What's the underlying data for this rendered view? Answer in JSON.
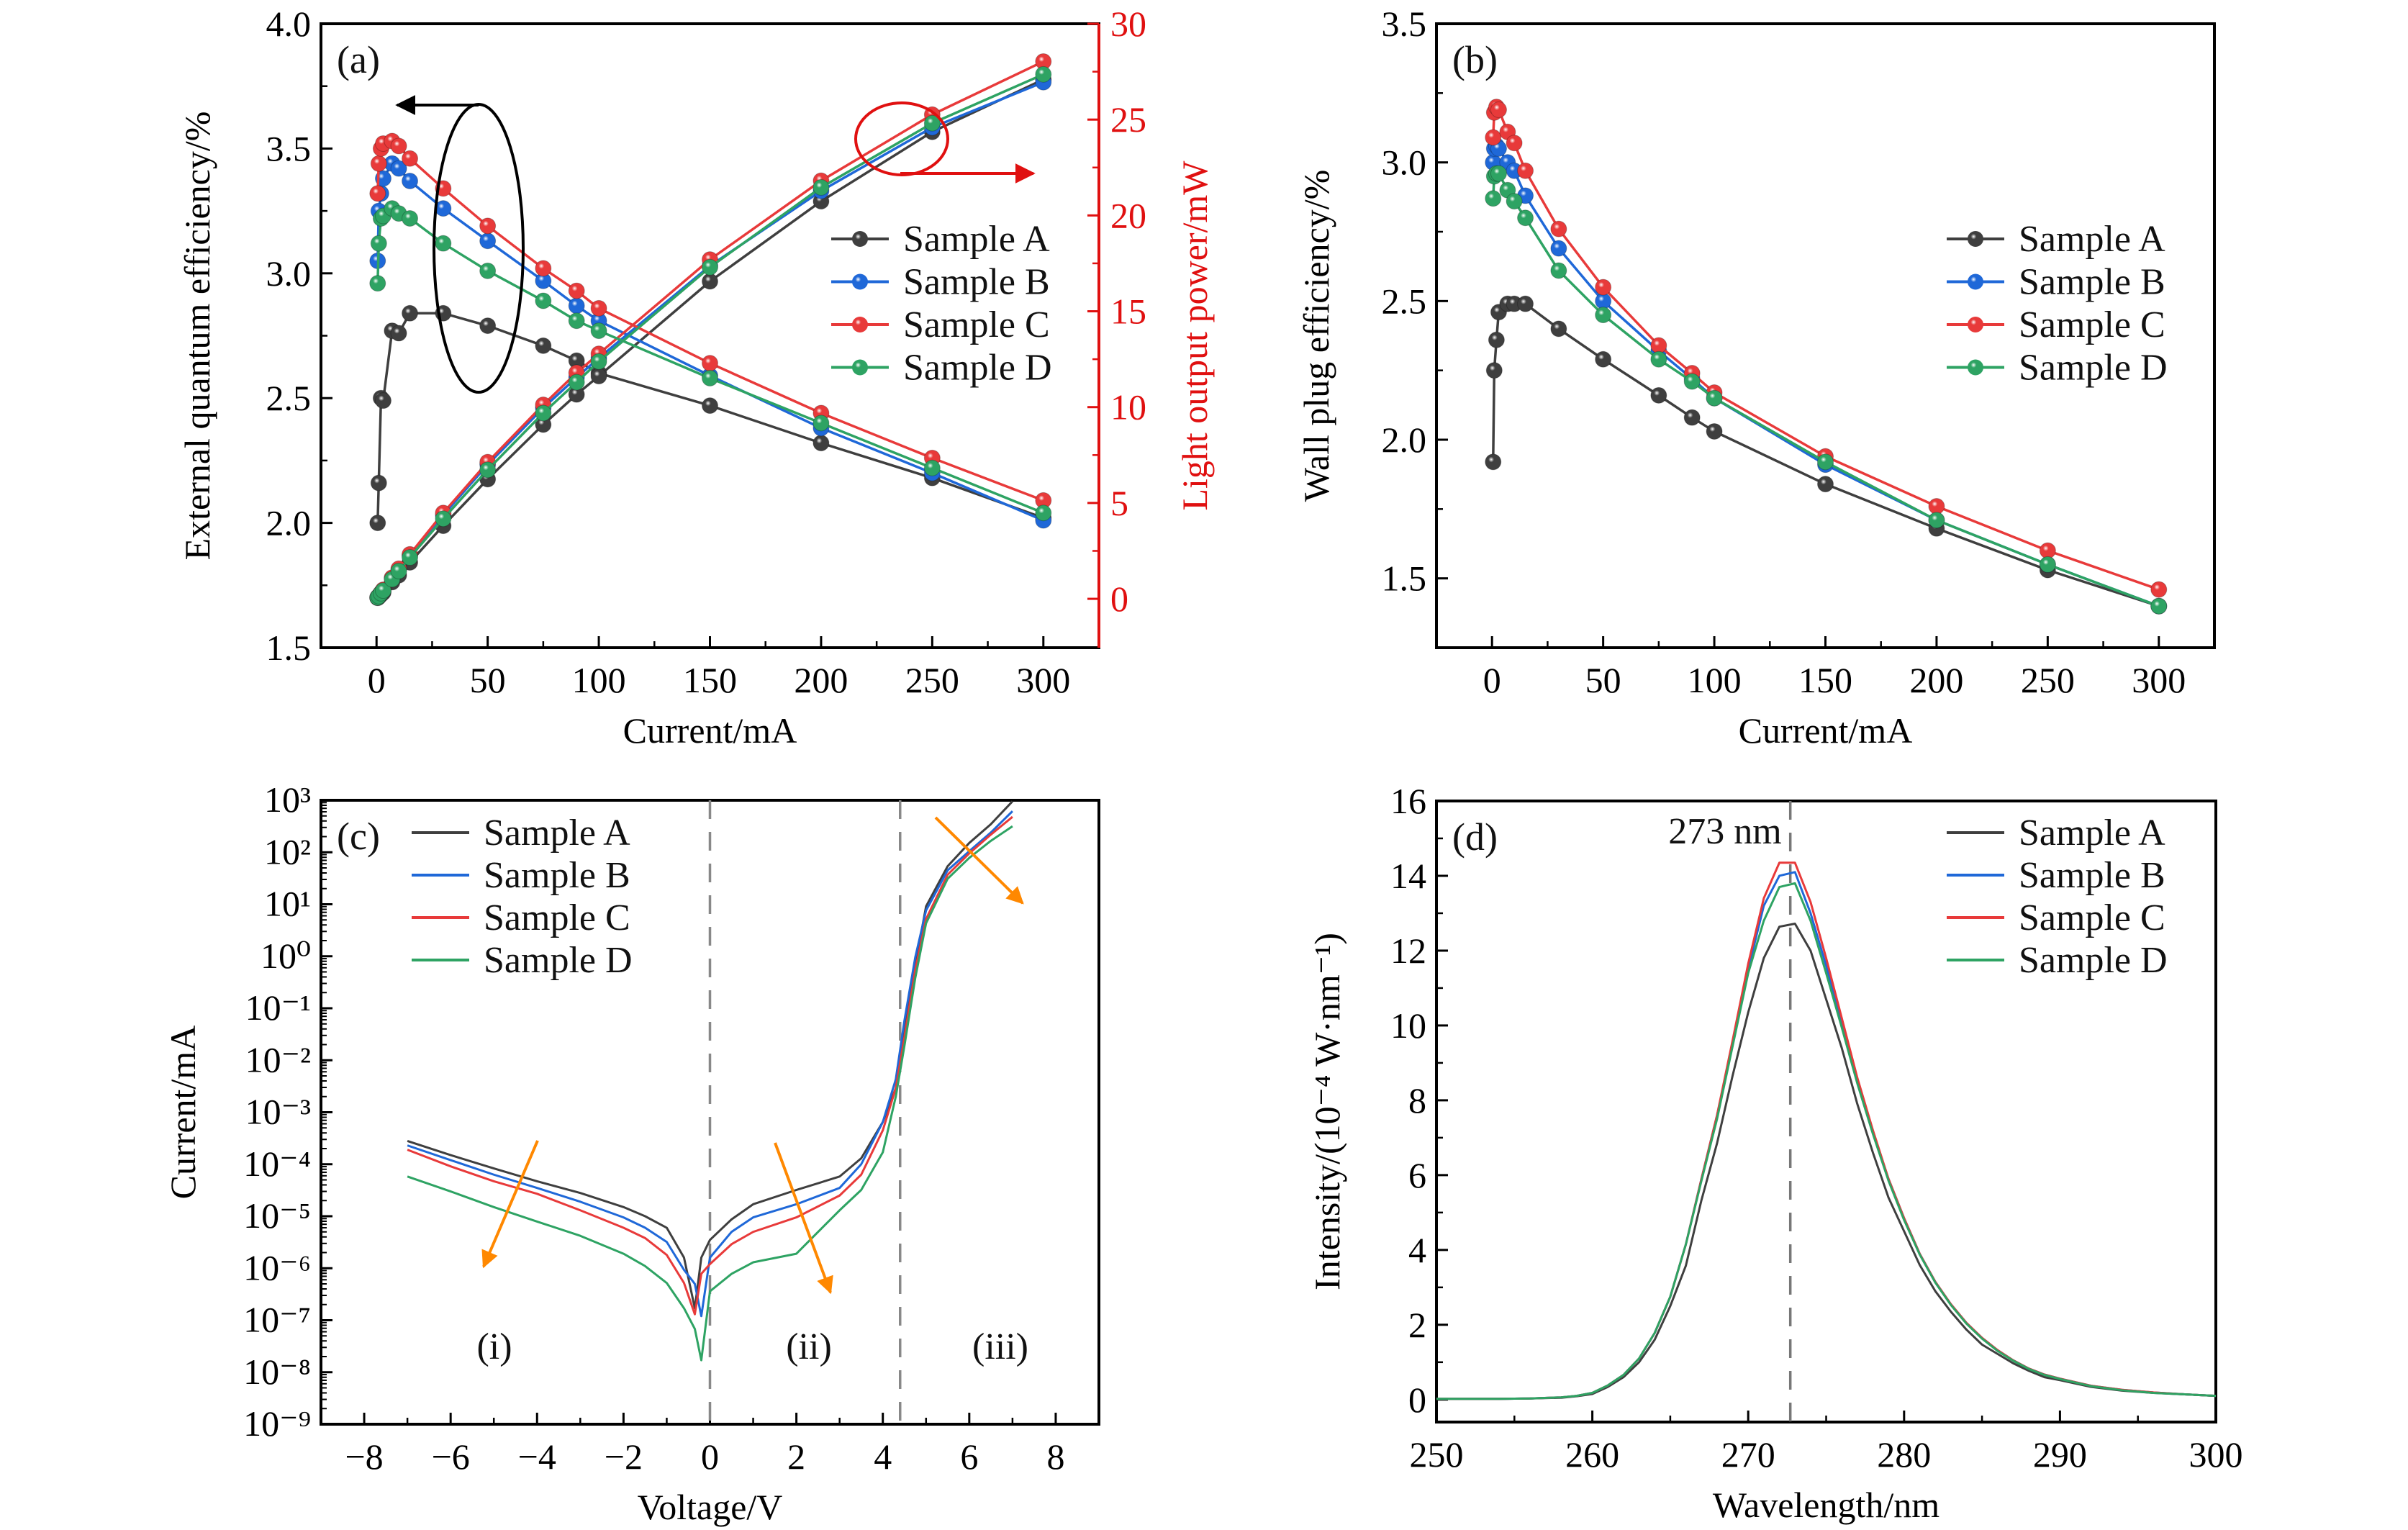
{
  "colors": {
    "Sample A": "#3f3f3f",
    "Sample B": "#1f68d8",
    "Sample C": "#e83a3a",
    "Sample D": "#2ea363",
    "orange": "#ff8800",
    "power_axis": "#e01010"
  },
  "chart_data": [
    {
      "panel": "(a)",
      "type": "line",
      "xlabel": "Current/mA",
      "ylabel": "External quantum efficiency/%",
      "y2label": "Light output power/mW",
      "xlim": [
        -25,
        325
      ],
      "ylim": [
        1.5,
        4.0
      ],
      "y2lim": [
        -2.55,
        30
      ],
      "xticks": [
        "0",
        "50",
        "100",
        "150",
        "200",
        "250",
        "300"
      ],
      "yticks": [
        "1.5",
        "2.0",
        "2.5",
        "3.0",
        "3.5",
        "4.0"
      ],
      "y2ticks": [
        "0",
        "5",
        "10",
        "15",
        "20",
        "25",
        "30"
      ],
      "legend": "right",
      "x": [
        0.5,
        1,
        2,
        3,
        7,
        10,
        15,
        30,
        50,
        75,
        90,
        100,
        150,
        200,
        250,
        300
      ],
      "series": [
        {
          "name": "Sample A",
          "eqe": [
            2.0,
            2.16,
            2.5,
            2.49,
            2.77,
            2.76,
            2.84,
            2.84,
            2.79,
            2.71,
            2.65,
            2.6,
            2.47,
            2.32,
            2.18,
            2.02
          ],
          "power": [
            0.05,
            0.1,
            0.22,
            0.33,
            0.87,
            1.23,
            1.9,
            3.81,
            6.24,
            9.09,
            10.66,
            11.62,
            16.56,
            20.74,
            24.36,
            27.09
          ]
        },
        {
          "name": "Sample B",
          "eqe": [
            3.05,
            3.25,
            3.32,
            3.38,
            3.44,
            3.42,
            3.37,
            3.26,
            3.13,
            2.97,
            2.87,
            2.81,
            2.59,
            2.38,
            2.2,
            2.01
          ],
          "power": [
            0.07,
            0.15,
            0.3,
            0.45,
            1.08,
            1.53,
            2.26,
            4.37,
            7.0,
            9.96,
            11.55,
            12.56,
            17.37,
            21.28,
            24.59,
            26.95
          ]
        },
        {
          "name": "Sample C",
          "eqe": [
            3.32,
            3.44,
            3.5,
            3.52,
            3.53,
            3.51,
            3.46,
            3.34,
            3.19,
            3.02,
            2.93,
            2.86,
            2.64,
            2.44,
            2.26,
            2.09
          ],
          "power": [
            0.07,
            0.15,
            0.31,
            0.47,
            1.1,
            1.57,
            2.32,
            4.48,
            7.13,
            10.12,
            11.79,
            12.78,
            17.7,
            21.81,
            25.26,
            28.03
          ]
        },
        {
          "name": "Sample D",
          "eqe": [
            2.96,
            3.12,
            3.22,
            3.23,
            3.26,
            3.24,
            3.22,
            3.12,
            3.01,
            2.89,
            2.81,
            2.77,
            2.58,
            2.4,
            2.22,
            2.04
          ],
          "power": [
            0.07,
            0.14,
            0.29,
            0.43,
            1.02,
            1.45,
            2.16,
            4.18,
            6.73,
            9.69,
            11.3,
            12.38,
            17.3,
            21.46,
            24.81,
            27.36
          ]
        }
      ]
    },
    {
      "panel": "(b)",
      "type": "line",
      "xlabel": "Current/mA",
      "ylabel": "Wall plug efficiency/%",
      "xlim": [
        -25,
        325
      ],
      "ylim": [
        1.25,
        3.5
      ],
      "xticks": [
        "0",
        "50",
        "100",
        "150",
        "200",
        "250",
        "300"
      ],
      "yticks": [
        "1.5",
        "2.0",
        "2.5",
        "3.0",
        "3.5"
      ],
      "legend": "right",
      "x": [
        0.5,
        1,
        2,
        3,
        7,
        10,
        15,
        30,
        50,
        75,
        90,
        100,
        150,
        200,
        250,
        300
      ],
      "series": [
        {
          "name": "Sample A",
          "values": [
            1.92,
            2.25,
            2.36,
            2.46,
            2.49,
            2.49,
            2.49,
            2.4,
            2.29,
            2.16,
            2.08,
            2.03,
            1.84,
            1.68,
            1.53,
            1.4
          ]
        },
        {
          "name": "Sample B",
          "values": [
            3.0,
            3.05,
            3.06,
            3.05,
            3.0,
            2.97,
            2.88,
            2.69,
            2.5,
            2.32,
            2.22,
            2.15,
            1.91,
            1.71,
            1.55,
            1.4
          ]
        },
        {
          "name": "Sample C",
          "values": [
            3.09,
            3.18,
            3.2,
            3.19,
            3.11,
            3.07,
            2.97,
            2.76,
            2.55,
            2.34,
            2.24,
            2.17,
            1.94,
            1.76,
            1.6,
            1.46
          ]
        },
        {
          "name": "Sample D",
          "values": [
            2.87,
            2.95,
            2.96,
            2.96,
            2.9,
            2.86,
            2.8,
            2.61,
            2.45,
            2.29,
            2.21,
            2.15,
            1.92,
            1.71,
            1.55,
            1.4
          ]
        }
      ]
    },
    {
      "panel": "(c)",
      "type": "line",
      "xlabel": "Voltage/V",
      "ylabel": "Current/mA",
      "yscale": "log",
      "xlim": [
        -9,
        9
      ],
      "ylim": [
        1e-09,
        1000.0
      ],
      "xticks": [
        "−8",
        "−6",
        "−4",
        "−2",
        "0",
        "2",
        "4",
        "6",
        "8"
      ],
      "yticks": [
        "10⁻⁹",
        "10⁻⁸",
        "10⁻⁷",
        "10⁻⁶",
        "10⁻⁵",
        "10⁻⁴",
        "10⁻³",
        "10⁻²",
        "10⁻¹",
        "10⁰",
        "10¹",
        "10²",
        "10³"
      ],
      "legend": "top-left",
      "dashed_lines_at_voltage": [
        0,
        4.4
      ],
      "regions": [
        "(i)",
        "(ii)",
        "(iii)"
      ],
      "x": [
        -7,
        -6,
        -5,
        -4,
        -3,
        -2,
        -1.5,
        -1,
        -0.6,
        -0.35,
        -0.2,
        0,
        0.5,
        1,
        2,
        3,
        3.5,
        4,
        4.3,
        4.5,
        4.75,
        5,
        5.5,
        6,
        6.5,
        7
      ],
      "series": [
        {
          "name": "Sample A",
          "values": [
            0.00028,
            0.00015,
            8.3e-05,
            4.7e-05,
            2.8e-05,
            1.5e-05,
            1e-05,
            6e-06,
            1.6e-06,
            1.7e-07,
            1.6e-06,
            3.5e-06,
            8.7e-06,
            1.7e-05,
            3.2e-05,
            5.8e-05,
            0.00013,
            0.00065,
            0.0029,
            0.033,
            0.66,
            9.1,
            54,
            151,
            347,
            955
          ]
        },
        {
          "name": "Sample B",
          "values": [
            0.00023,
            0.00012,
            6.3e-05,
            3.5e-05,
            1.9e-05,
            9.5e-06,
            6e-06,
            3.2e-06,
            9.3e-07,
            5e-07,
            1.2e-07,
            1.6e-06,
            5e-06,
            9.5e-06,
            1.7e-05,
            3.5e-05,
            0.0001,
            0.00065,
            0.0043,
            0.058,
            0.95,
            7.6,
            45,
            105,
            240,
            617
          ]
        },
        {
          "name": "Sample C",
          "values": [
            0.00019,
            9.1e-05,
            4.7e-05,
            2.7e-05,
            1.3e-05,
            6e-06,
            3.8e-06,
            1.8e-06,
            5.2e-07,
            1.3e-07,
            7.8e-07,
            1.2e-06,
            2.9e-06,
            5e-06,
            9.5e-06,
            2.5e-05,
            6.3e-05,
            0.00045,
            0.0029,
            0.028,
            0.55,
            5.2,
            37,
            95,
            219,
            479
          ]
        },
        {
          "name": "Sample D",
          "values": [
            5.8e-05,
            3e-05,
            1.5e-05,
            7.9e-06,
            4.2e-06,
            1.9e-06,
            1.1e-06,
            5.2e-07,
            1.7e-07,
            6.8e-08,
            1.7e-08,
            3.6e-07,
            7.8e-07,
            1.3e-06,
            1.9e-06,
            1.3e-05,
            3.2e-05,
            0.00017,
            0.002,
            0.019,
            0.38,
            4.3,
            31,
            78,
            166,
            316
          ]
        }
      ]
    },
    {
      "panel": "(d)",
      "type": "line",
      "xlabel": "Wavelength/nm",
      "ylabel": "Intensity/(10⁻⁴ W·nm⁻¹)",
      "xlim": [
        250,
        300
      ],
      "ylim": [
        -0.6,
        16
      ],
      "xticks": [
        "250",
        "260",
        "270",
        "280",
        "290",
        "300"
      ],
      "yticks": [
        "0",
        "2",
        "4",
        "6",
        "8",
        "10",
        "12",
        "14",
        "16"
      ],
      "legend": "top-right",
      "peak_annotation": "273 nm",
      "dashed_line_at_wavelength": 272.7,
      "x": [
        250,
        252,
        254,
        256,
        258,
        259,
        260,
        261,
        262,
        263,
        264,
        265,
        266,
        267,
        268,
        269,
        270,
        271,
        272,
        273,
        274,
        275,
        276,
        277,
        278,
        279,
        280,
        281,
        282,
        283,
        284,
        285,
        286,
        287,
        288,
        289,
        290,
        292,
        294,
        296,
        298,
        300
      ],
      "series": [
        {
          "name": "Sample A",
          "values": [
            0.02,
            0.02,
            0.02,
            0.03,
            0.05,
            0.09,
            0.15,
            0.34,
            0.6,
            1.0,
            1.6,
            2.5,
            3.58,
            5.33,
            6.85,
            8.66,
            10.35,
            11.8,
            12.64,
            12.72,
            12.0,
            10.7,
            9.4,
            7.9,
            6.6,
            5.4,
            4.5,
            3.6,
            2.9,
            2.35,
            1.87,
            1.47,
            1.22,
            0.97,
            0.77,
            0.6,
            0.52,
            0.34,
            0.24,
            0.18,
            0.14,
            0.1
          ]
        },
        {
          "name": "Sample B",
          "values": [
            0.02,
            0.02,
            0.02,
            0.03,
            0.06,
            0.1,
            0.18,
            0.38,
            0.66,
            1.1,
            1.78,
            2.75,
            4.15,
            5.9,
            7.6,
            9.5,
            11.5,
            13.2,
            14.0,
            14.1,
            13.0,
            11.6,
            10.1,
            8.55,
            7.15,
            5.9,
            4.85,
            3.9,
            3.15,
            2.55,
            2.05,
            1.65,
            1.32,
            1.05,
            0.83,
            0.67,
            0.56,
            0.37,
            0.26,
            0.19,
            0.14,
            0.1
          ]
        },
        {
          "name": "Sample C",
          "values": [
            0.02,
            0.02,
            0.02,
            0.03,
            0.06,
            0.1,
            0.18,
            0.38,
            0.66,
            1.1,
            1.78,
            2.75,
            4.15,
            5.9,
            7.6,
            9.6,
            11.65,
            13.4,
            14.35,
            14.35,
            13.3,
            11.8,
            10.2,
            8.6,
            7.2,
            5.9,
            4.85,
            3.9,
            3.15,
            2.55,
            2.05,
            1.65,
            1.32,
            1.05,
            0.83,
            0.67,
            0.56,
            0.37,
            0.26,
            0.19,
            0.14,
            0.1
          ]
        },
        {
          "name": "Sample D",
          "values": [
            0.02,
            0.02,
            0.02,
            0.03,
            0.06,
            0.1,
            0.18,
            0.38,
            0.66,
            1.1,
            1.78,
            2.75,
            4.15,
            5.85,
            7.5,
            9.45,
            11.4,
            12.8,
            13.7,
            13.8,
            12.8,
            11.4,
            9.95,
            8.45,
            7.1,
            5.85,
            4.8,
            3.88,
            3.13,
            2.53,
            2.03,
            1.63,
            1.3,
            1.04,
            0.82,
            0.66,
            0.55,
            0.36,
            0.25,
            0.18,
            0.14,
            0.1
          ]
        }
      ]
    }
  ]
}
